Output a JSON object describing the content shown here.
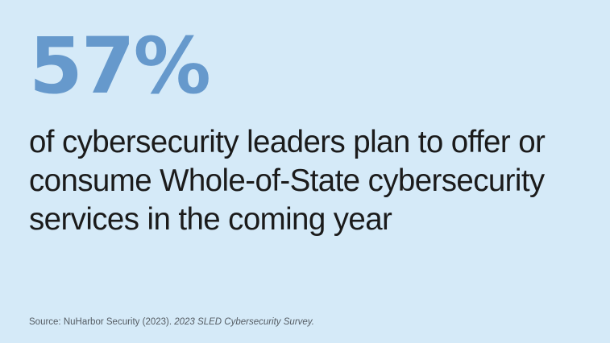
{
  "stat": {
    "value": "57%"
  },
  "description": {
    "text": "of cybersecurity leaders plan to offer or consume Whole-of-State cybersecurity services in the coming year"
  },
  "source": {
    "prefix": "Source: NuHarbor Security (2023). ",
    "title": "2023 SLED Cybersecurity Survey."
  },
  "colors": {
    "background": "#d5eaf8",
    "stat": "#6699cc",
    "text": "#1b1b1b",
    "source": "#555c63"
  }
}
